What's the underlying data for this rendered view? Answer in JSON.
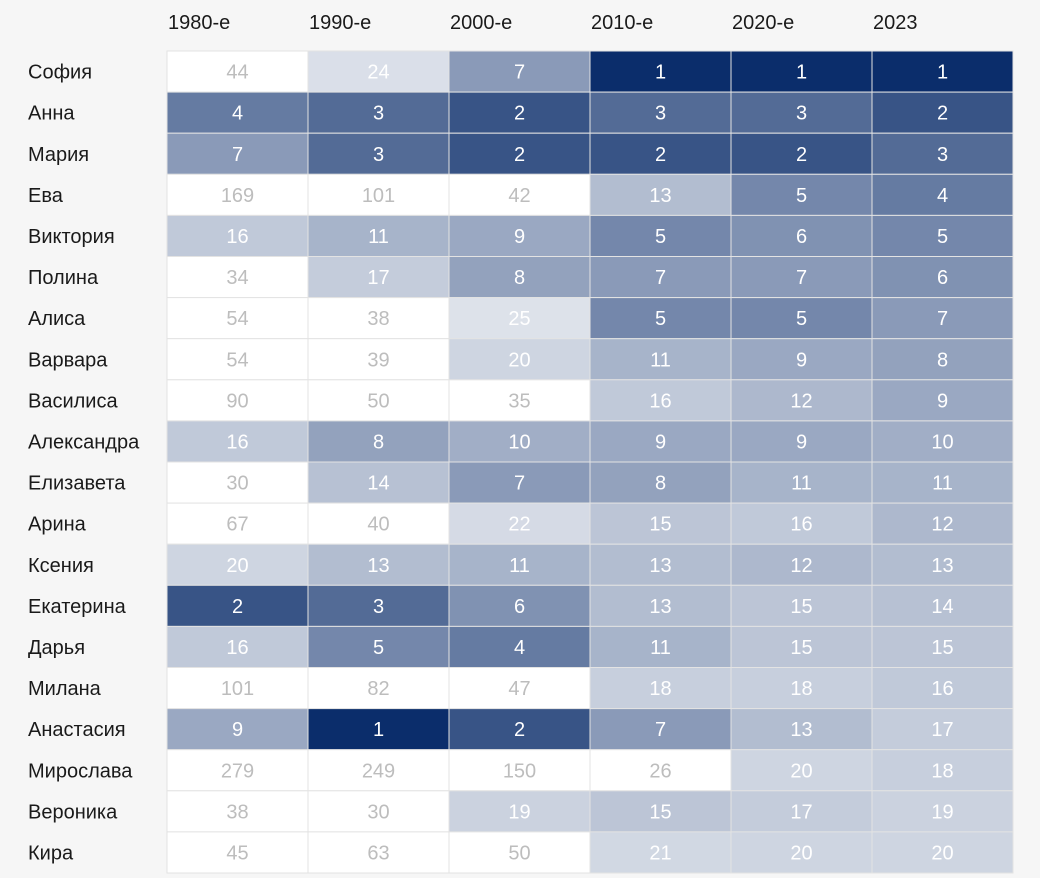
{
  "chart_data": {
    "type": "heatmap",
    "title": "",
    "columns": [
      "1980-е",
      "1990-е",
      "2000-е",
      "2010-е",
      "2020-е",
      "2023"
    ],
    "rows": [
      {
        "name": "София",
        "values": [
          44,
          24,
          7,
          1,
          1,
          1
        ]
      },
      {
        "name": "Анна",
        "values": [
          4,
          3,
          2,
          3,
          3,
          2
        ]
      },
      {
        "name": "Мария",
        "values": [
          7,
          3,
          2,
          2,
          2,
          3
        ]
      },
      {
        "name": "Ева",
        "values": [
          169,
          101,
          42,
          13,
          5,
          4
        ]
      },
      {
        "name": "Виктория",
        "values": [
          16,
          11,
          9,
          5,
          6,
          5
        ]
      },
      {
        "name": "Полина",
        "values": [
          34,
          17,
          8,
          7,
          7,
          6
        ]
      },
      {
        "name": "Алиса",
        "values": [
          54,
          38,
          25,
          5,
          5,
          7
        ]
      },
      {
        "name": "Варвара",
        "values": [
          54,
          39,
          20,
          11,
          9,
          8
        ]
      },
      {
        "name": "Василиса",
        "values": [
          90,
          50,
          35,
          16,
          12,
          9
        ]
      },
      {
        "name": "Александра",
        "values": [
          16,
          8,
          10,
          9,
          9,
          10
        ]
      },
      {
        "name": "Елизавета",
        "values": [
          30,
          14,
          7,
          8,
          11,
          11
        ]
      },
      {
        "name": "Арина",
        "values": [
          67,
          40,
          22,
          15,
          16,
          12
        ]
      },
      {
        "name": "Ксения",
        "values": [
          20,
          13,
          11,
          13,
          12,
          13
        ]
      },
      {
        "name": "Екатерина",
        "values": [
          2,
          3,
          6,
          13,
          15,
          14
        ]
      },
      {
        "name": "Дарья",
        "values": [
          16,
          5,
          4,
          11,
          15,
          15
        ]
      },
      {
        "name": "Милана",
        "values": [
          101,
          82,
          47,
          18,
          18,
          16
        ]
      },
      {
        "name": "Анастасия",
        "values": [
          9,
          1,
          2,
          7,
          13,
          17
        ]
      },
      {
        "name": "Мирослава",
        "values": [
          279,
          249,
          150,
          26,
          20,
          18
        ]
      },
      {
        "name": "Вероника",
        "values": [
          38,
          30,
          19,
          15,
          17,
          19
        ]
      },
      {
        "name": "Кира",
        "values": [
          45,
          63,
          50,
          21,
          20,
          20
        ]
      }
    ],
    "color_scale": {
      "dark": "#0b2d6b",
      "light": "#ffffff",
      "empty": "#ffffff",
      "value_dark_text": "#ffffff",
      "value_light_text": "#bdbdbd",
      "min": 1,
      "max": 25
    }
  }
}
